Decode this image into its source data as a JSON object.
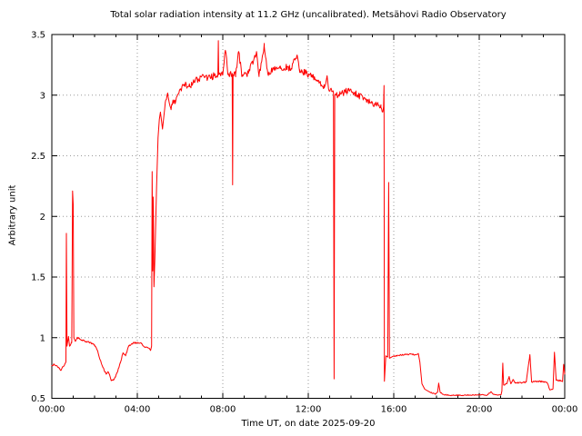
{
  "title": "Total solar radiation intensity at 11.2 GHz (uncalibrated). Metsähovi Radio Observatory",
  "x_axis": {
    "label": "Time UT, on date 2025-09-20",
    "tick_labels": [
      "00:00",
      "04:00",
      "08:00",
      "12:00",
      "16:00",
      "20:00",
      "00:00"
    ],
    "tick_hours": [
      0,
      4,
      8,
      12,
      16,
      20,
      24
    ],
    "minor_step_hours": 1,
    "range_hours": [
      0,
      24
    ]
  },
  "y_axis": {
    "label": "Arbitrary unit",
    "tick_labels": [
      "0.5",
      "1",
      "1.5",
      "2",
      "2.5",
      "3",
      "3.5"
    ],
    "tick_values": [
      0.5,
      1,
      1.5,
      2,
      2.5,
      3,
      3.5
    ],
    "range": [
      0.5,
      3.5
    ]
  },
  "colors": {
    "series": "#ff0000",
    "frame": "#000000",
    "grid": "#9a9a9a",
    "background": "#ffffff"
  },
  "chart_data": {
    "type": "line",
    "series": [
      {
        "name": "solar-intensity-11.2GHz",
        "color": "#ff0000",
        "points": [
          [
            0.0,
            0.77
          ],
          [
            0.1,
            0.78
          ],
          [
            0.22,
            0.77
          ],
          [
            0.35,
            0.75
          ],
          [
            0.43,
            0.73
          ],
          [
            0.5,
            0.76
          ],
          [
            0.6,
            0.78
          ],
          [
            0.66,
            0.8
          ],
          [
            0.68,
            1.86
          ],
          [
            0.71,
            0.93
          ],
          [
            0.78,
            1.01
          ],
          [
            0.83,
            0.93
          ],
          [
            0.93,
            0.96
          ],
          [
            0.97,
            2.21
          ],
          [
            1.0,
            2.1
          ],
          [
            1.03,
            1.0
          ],
          [
            1.1,
            0.97
          ],
          [
            1.2,
            1.0
          ],
          [
            1.35,
            0.985
          ],
          [
            1.55,
            0.97
          ],
          [
            1.8,
            0.96
          ],
          [
            2.0,
            0.94
          ],
          [
            2.12,
            0.9
          ],
          [
            2.3,
            0.8
          ],
          [
            2.45,
            0.73
          ],
          [
            2.55,
            0.7
          ],
          [
            2.63,
            0.72
          ],
          [
            2.7,
            0.695
          ],
          [
            2.78,
            0.645
          ],
          [
            2.88,
            0.65
          ],
          [
            2.98,
            0.675
          ],
          [
            3.08,
            0.72
          ],
          [
            3.2,
            0.79
          ],
          [
            3.33,
            0.875
          ],
          [
            3.45,
            0.85
          ],
          [
            3.6,
            0.93
          ],
          [
            3.8,
            0.955
          ],
          [
            4.0,
            0.96
          ],
          [
            4.2,
            0.95
          ],
          [
            4.35,
            0.92
          ],
          [
            4.5,
            0.915
          ],
          [
            4.62,
            0.895
          ],
          [
            4.67,
            0.93
          ],
          [
            4.695,
            2.37
          ],
          [
            4.72,
            1.55
          ],
          [
            4.75,
            2.16
          ],
          [
            4.78,
            1.42
          ],
          [
            4.82,
            1.65
          ],
          [
            4.9,
            2.25
          ],
          [
            4.97,
            2.65
          ],
          [
            5.03,
            2.8
          ],
          [
            5.08,
            2.86
          ],
          [
            5.13,
            2.79
          ],
          [
            5.18,
            2.72
          ],
          [
            5.25,
            2.84
          ],
          [
            5.33,
            2.96
          ],
          [
            5.43,
            3.0
          ],
          [
            5.5,
            2.93
          ],
          [
            5.58,
            2.88
          ],
          [
            5.67,
            2.96
          ],
          [
            5.77,
            2.93
          ],
          [
            5.88,
            3.0
          ],
          [
            6.0,
            3.05
          ],
          [
            6.2,
            3.09
          ],
          [
            6.45,
            3.07
          ],
          [
            6.7,
            3.12
          ],
          [
            7.0,
            3.15
          ],
          [
            7.3,
            3.14
          ],
          [
            7.6,
            3.16
          ],
          [
            7.77,
            3.17
          ],
          [
            7.79,
            3.45
          ],
          [
            7.81,
            3.17
          ],
          [
            8.0,
            3.17
          ],
          [
            8.12,
            3.37
          ],
          [
            8.25,
            3.18
          ],
          [
            8.44,
            3.18
          ],
          [
            8.46,
            2.26
          ],
          [
            8.48,
            3.17
          ],
          [
            8.6,
            3.17
          ],
          [
            8.74,
            3.36
          ],
          [
            8.9,
            3.17
          ],
          [
            9.2,
            3.18
          ],
          [
            9.58,
            3.36
          ],
          [
            9.7,
            3.17
          ],
          [
            9.94,
            3.4
          ],
          [
            10.1,
            3.18
          ],
          [
            10.4,
            3.21
          ],
          [
            10.7,
            3.22
          ],
          [
            11.0,
            3.23
          ],
          [
            11.2,
            3.22
          ],
          [
            11.48,
            3.33
          ],
          [
            11.6,
            3.21
          ],
          [
            11.9,
            3.18
          ],
          [
            12.2,
            3.15
          ],
          [
            12.5,
            3.1
          ],
          [
            12.75,
            3.06
          ],
          [
            12.88,
            3.16
          ],
          [
            12.95,
            3.05
          ],
          [
            13.1,
            3.03
          ],
          [
            13.18,
            3.02
          ],
          [
            13.21,
            0.66
          ],
          [
            13.24,
            3.0
          ],
          [
            13.5,
            3.01
          ],
          [
            13.9,
            3.04
          ],
          [
            14.3,
            3.0
          ],
          [
            14.7,
            2.97
          ],
          [
            15.1,
            2.93
          ],
          [
            15.4,
            2.9
          ],
          [
            15.52,
            2.88
          ],
          [
            15.545,
            3.08
          ],
          [
            15.56,
            0.64
          ],
          [
            15.63,
            0.85
          ],
          [
            15.72,
            0.84
          ],
          [
            15.76,
            2.28
          ],
          [
            15.8,
            0.83
          ],
          [
            15.95,
            0.845
          ],
          [
            16.2,
            0.855
          ],
          [
            16.5,
            0.86
          ],
          [
            16.8,
            0.865
          ],
          [
            17.0,
            0.86
          ],
          [
            17.15,
            0.87
          ],
          [
            17.22,
            0.8
          ],
          [
            17.32,
            0.62
          ],
          [
            17.45,
            0.575
          ],
          [
            17.7,
            0.55
          ],
          [
            17.95,
            0.535
          ],
          [
            18.05,
            0.55
          ],
          [
            18.1,
            0.625
          ],
          [
            18.17,
            0.55
          ],
          [
            18.35,
            0.53
          ],
          [
            18.7,
            0.525
          ],
          [
            19.2,
            0.525
          ],
          [
            19.7,
            0.527
          ],
          [
            20.1,
            0.53
          ],
          [
            20.35,
            0.525
          ],
          [
            20.55,
            0.555
          ],
          [
            20.65,
            0.535
          ],
          [
            20.9,
            0.528
          ],
          [
            21.02,
            0.53
          ],
          [
            21.06,
            0.56
          ],
          [
            21.1,
            0.79
          ],
          [
            21.14,
            0.61
          ],
          [
            21.3,
            0.625
          ],
          [
            21.4,
            0.68
          ],
          [
            21.48,
            0.62
          ],
          [
            21.58,
            0.655
          ],
          [
            21.68,
            0.625
          ],
          [
            22.0,
            0.63
          ],
          [
            22.2,
            0.635
          ],
          [
            22.37,
            0.86
          ],
          [
            22.45,
            0.635
          ],
          [
            22.75,
            0.64
          ],
          [
            23.0,
            0.638
          ],
          [
            23.18,
            0.628
          ],
          [
            23.3,
            0.57
          ],
          [
            23.45,
            0.578
          ],
          [
            23.52,
            0.88
          ],
          [
            23.6,
            0.648
          ],
          [
            23.8,
            0.648
          ],
          [
            23.9,
            0.638
          ],
          [
            23.95,
            0.78
          ],
          [
            24.0,
            0.7
          ]
        ],
        "noise_segments": [
          {
            "t0": 0.0,
            "t1": 4.6,
            "amp": 0.007
          },
          {
            "t0": 4.95,
            "t1": 15.5,
            "amp": 0.028
          },
          {
            "t0": 15.9,
            "t1": 17.1,
            "amp": 0.006
          },
          {
            "t0": 17.6,
            "t1": 20.9,
            "amp": 0.004
          },
          {
            "t0": 21.2,
            "t1": 23.9,
            "amp": 0.006
          }
        ]
      }
    ],
    "xlim_hours": [
      0,
      24
    ],
    "ylim": [
      0.5,
      3.5
    ],
    "grid": true,
    "legend": "none"
  }
}
